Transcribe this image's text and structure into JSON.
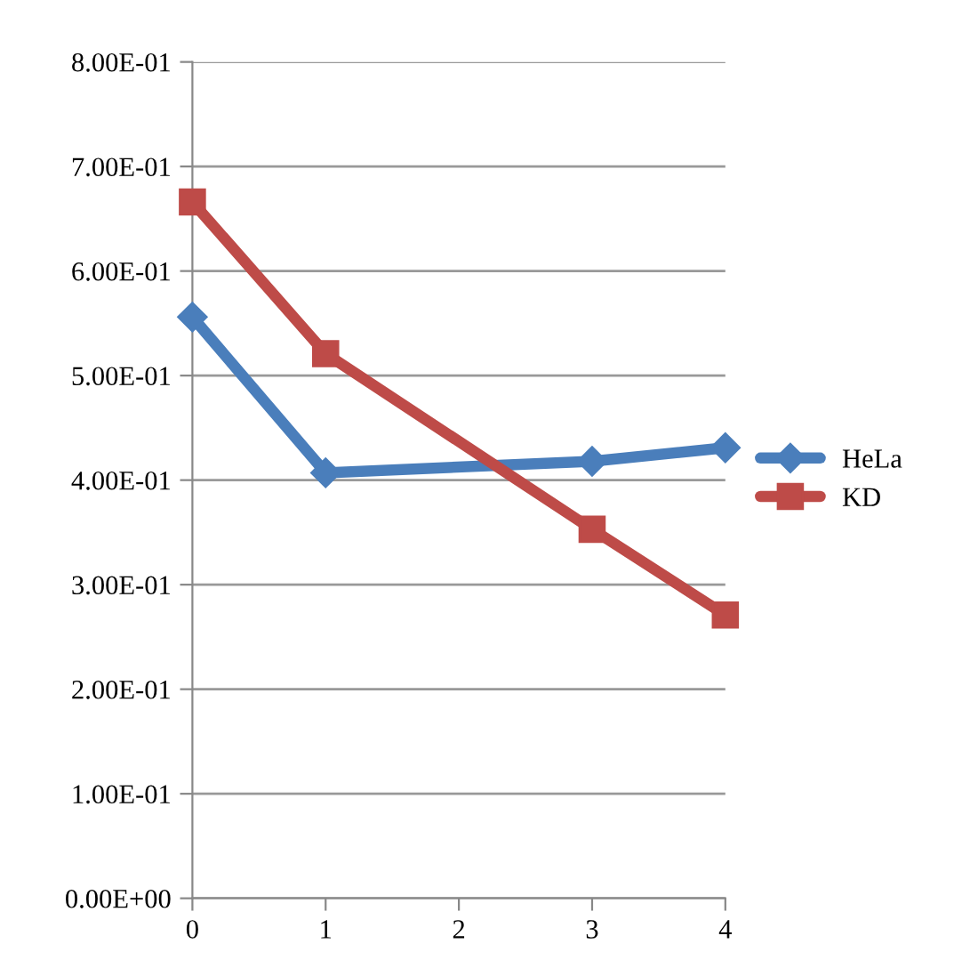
{
  "chart_data": {
    "type": "line",
    "x": [
      0,
      1,
      3,
      4
    ],
    "series": [
      {
        "name": "HeLa",
        "color": "#4a7ebb",
        "marker": "diamond",
        "values": [
          0.556,
          0.407,
          0.418,
          0.431
        ]
      },
      {
        "name": "KD",
        "color": "#be4b48",
        "marker": "square",
        "values": [
          0.666,
          0.521,
          0.353,
          0.271
        ]
      }
    ],
    "xlim": [
      0,
      4
    ],
    "xticks": [
      0,
      1,
      2,
      3,
      4
    ],
    "ylim": [
      0,
      0.8
    ],
    "yticks": [
      {
        "value": 0,
        "label": "0.00E+00"
      },
      {
        "value": 0.1,
        "label": "1.00E-01"
      },
      {
        "value": 0.2,
        "label": "2.00E-01"
      },
      {
        "value": 0.3,
        "label": "3.00E-01"
      },
      {
        "value": 0.4,
        "label": "4.00E-01"
      },
      {
        "value": 0.5,
        "label": "5.00E-01"
      },
      {
        "value": 0.6,
        "label": "6.00E-01"
      },
      {
        "value": 0.7,
        "label": "7.00E-01"
      },
      {
        "value": 0.8,
        "label": "8.00E-01"
      }
    ],
    "grid": "y",
    "legend": "right",
    "line_style": "solid"
  }
}
